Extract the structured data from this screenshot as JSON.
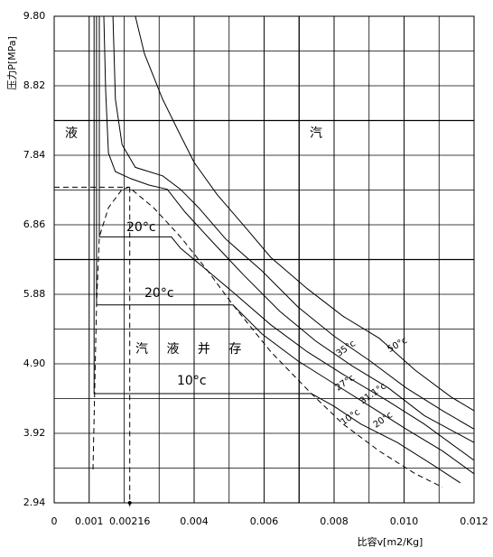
{
  "chart_data": {
    "type": "line",
    "x_label": "比容v[m2/Kg]",
    "y_label": "压力P[MPa]",
    "xlim": [
      0,
      0.012
    ],
    "ylim": [
      2.94,
      9.8
    ],
    "xticks": [
      0,
      0.001,
      0.00216,
      0.004,
      0.006,
      0.008,
      {
        "value": 0.01,
        "label": "0.010"
      },
      0.012
    ],
    "yticks": [
      2.94,
      3.92,
      {
        "value": 4.9,
        "label": "4.90"
      },
      5.88,
      6.86,
      7.84,
      8.82,
      {
        "value": 9.8,
        "label": "9.80"
      }
    ],
    "grid": true,
    "series": [
      {
        "name": "50°c",
        "color": "#000000",
        "x": [
          0.00232,
          0.00258,
          0.0031,
          0.00361,
          0.004,
          0.00465,
          0.00542,
          0.00619,
          0.00723,
          0.00826,
          0.00929,
          0.01032,
          0.01135,
          0.012
        ],
        "y": [
          9.8,
          9.27,
          8.63,
          8.12,
          7.74,
          7.29,
          6.85,
          6.4,
          5.96,
          5.57,
          5.26,
          4.81,
          4.43,
          4.24
        ]
      },
      {
        "name": "35°c",
        "color": "#000000",
        "x": [
          0.00168,
          0.00175,
          0.00194,
          0.00232,
          0.0031,
          0.00361,
          0.00413,
          0.0049,
          0.00594,
          0.00697,
          0.008,
          0.00903,
          0.01006,
          0.0111,
          0.012
        ],
        "y": [
          9.8,
          8.63,
          7.99,
          7.67,
          7.55,
          7.36,
          7.1,
          6.66,
          6.21,
          5.7,
          5.29,
          4.94,
          4.56,
          4.24,
          3.98
        ]
      },
      {
        "name": "31.1°c",
        "color": "#000000",
        "x": [
          0.00142,
          0.00147,
          0.00155,
          0.00175,
          0.00219,
          0.00271,
          0.00323,
          0.00374,
          0.00452,
          0.00542,
          0.00645,
          0.00748,
          0.00852,
          0.00955,
          0.01058,
          0.012
        ],
        "y": [
          9.8,
          8.76,
          7.87,
          7.61,
          7.51,
          7.42,
          7.36,
          7.04,
          6.62,
          6.15,
          5.64,
          5.22,
          4.87,
          4.56,
          4.17,
          3.79
        ]
      },
      {
        "name": "27°c",
        "color": "#000000",
        "x": [
          0.00129,
          0.00129,
          0.00335,
          0.00361,
          0.00439,
          0.00516,
          0.00619,
          0.00723,
          0.00826,
          0.00955,
          0.01058,
          0.012
        ],
        "y": [
          9.8,
          6.69,
          6.69,
          6.53,
          6.21,
          5.89,
          5.45,
          5.07,
          4.75,
          4.37,
          4.05,
          3.54
        ]
      },
      {
        "name": "20°c",
        "color": "#000000",
        "x": [
          0.00121,
          0.00121,
          0.00511,
          0.00594,
          0.00697,
          0.008,
          0.00903,
          0.01006,
          0.0111,
          0.012
        ],
        "y": [
          9.8,
          5.73,
          5.73,
          5.32,
          4.94,
          4.62,
          4.3,
          3.98,
          3.67,
          3.35
        ]
      },
      {
        "name": "10°c",
        "color": "#000000",
        "x": [
          0.00114,
          0.00114,
          0.00735,
          0.008,
          0.00877,
          0.00981,
          0.01084,
          0.01161
        ],
        "y": [
          9.8,
          4.48,
          4.48,
          4.3,
          4.05,
          3.79,
          3.47,
          3.22
        ]
      }
    ],
    "saturation_curve": {
      "color": "#000000",
      "x": [
        0.00111,
        0.00121,
        0.00129,
        0.00155,
        0.00194,
        0.00214,
        0.00284,
        0.00361,
        0.00439,
        0.00511,
        0.00619,
        0.00735,
        0.00826,
        0.00929,
        0.01032,
        0.0111
      ],
      "y": [
        3.41,
        5.73,
        6.69,
        7.1,
        7.36,
        7.39,
        7.1,
        6.69,
        6.21,
        5.73,
        5.07,
        4.48,
        4.05,
        3.67,
        3.35,
        3.16
      ]
    },
    "critical_point": {
      "x": 0.00216,
      "y": 7.39
    },
    "annotations": [
      "液",
      "汽",
      "汽 液 并 存",
      "20°c",
      "20°c",
      "10°c"
    ]
  }
}
